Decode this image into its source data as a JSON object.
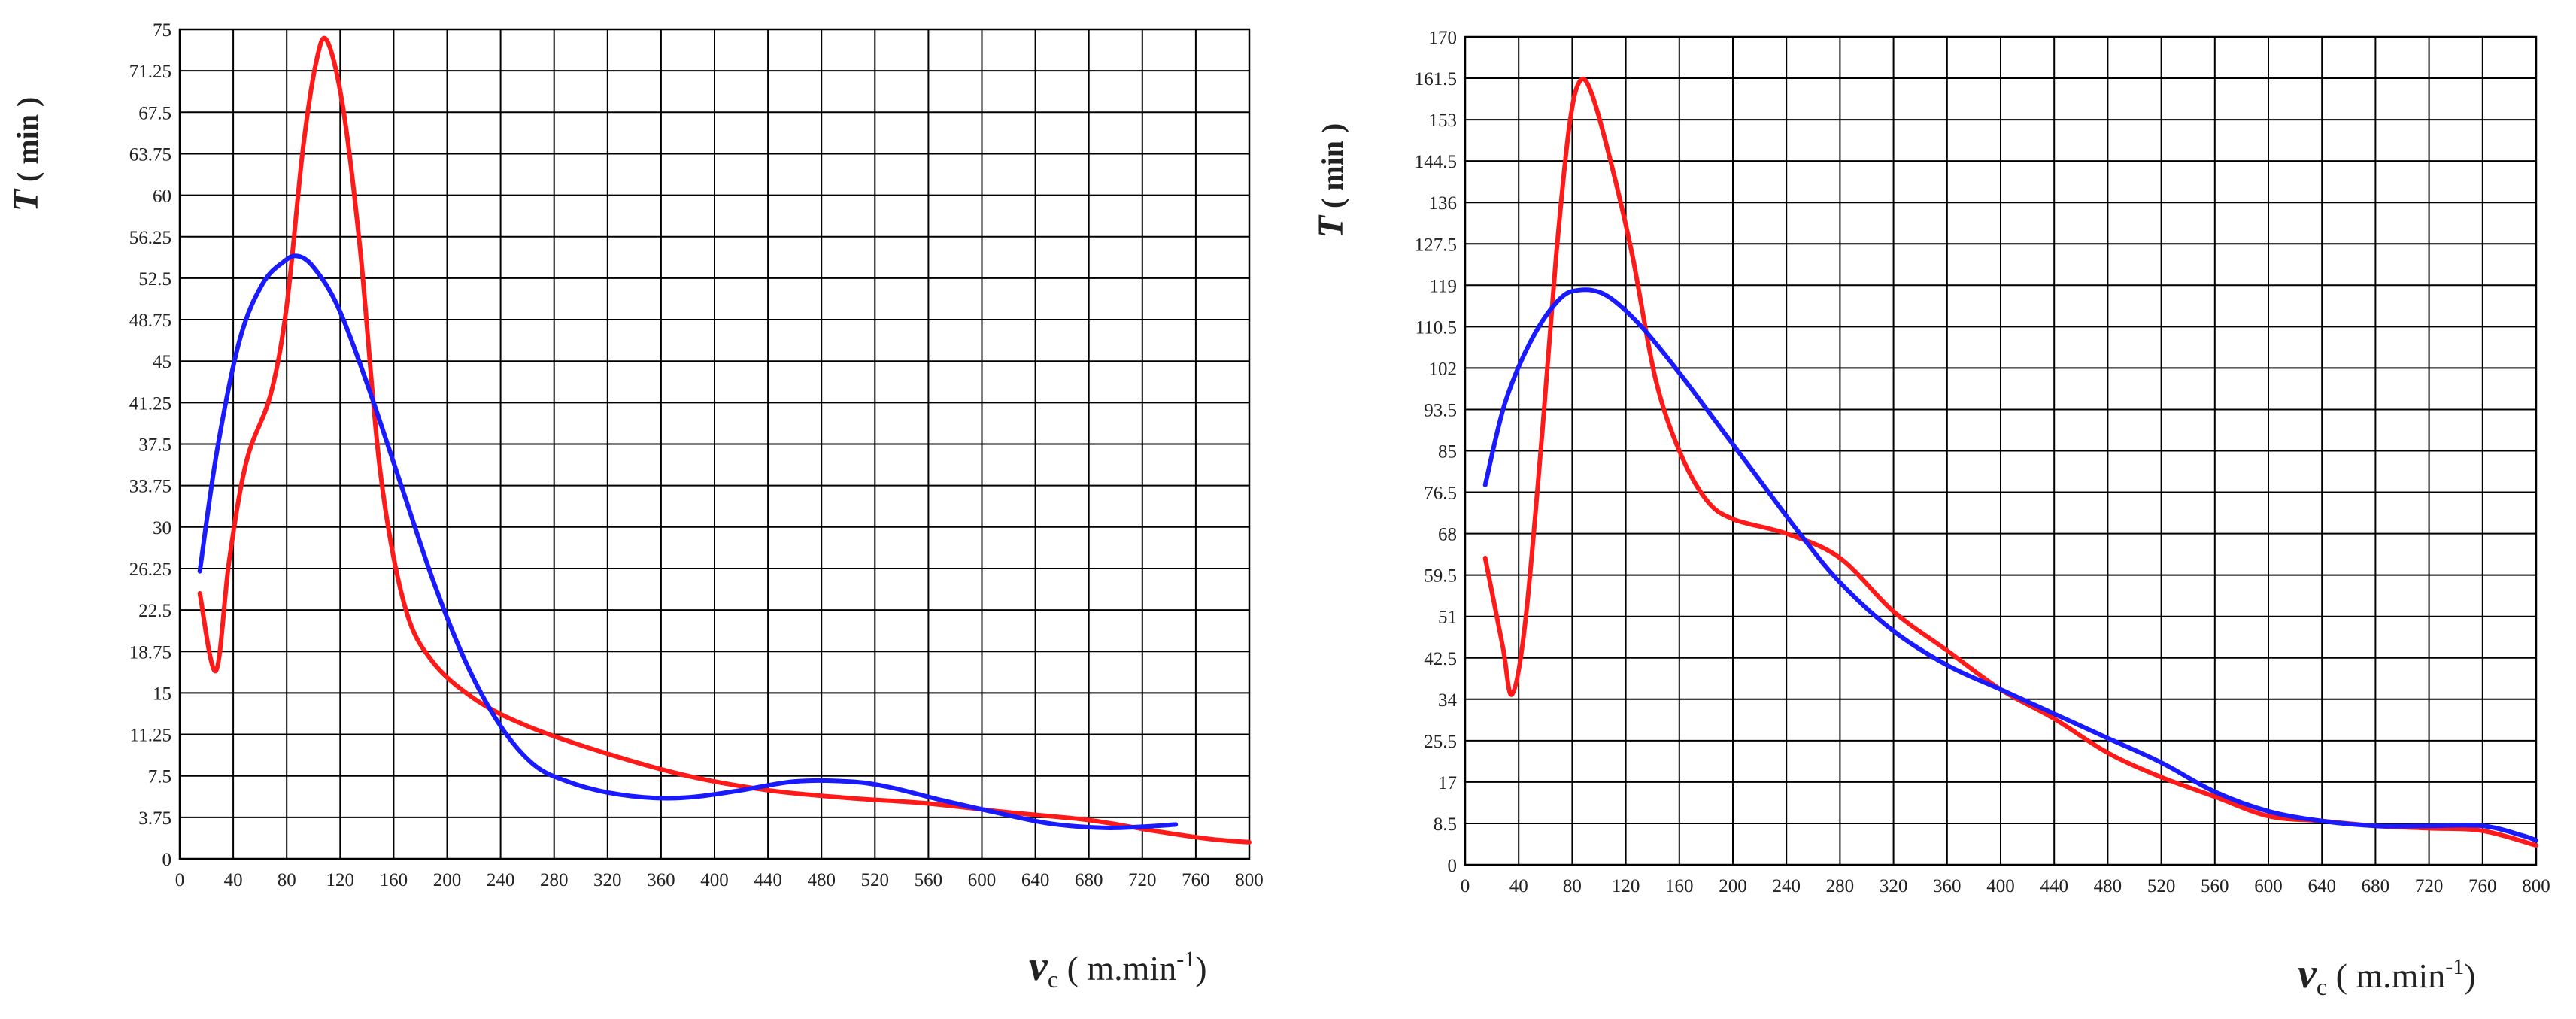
{
  "chart_data": [
    {
      "type": "line",
      "title": "",
      "xlabel": {
        "symbol": "v",
        "subscript": "c",
        "unit_pre": " ( m.min",
        "unit_sup": "-1",
        "unit_post": ")"
      },
      "ylabel": {
        "symbol": "T",
        "unit": " ( min )"
      },
      "xlim": [
        0,
        800
      ],
      "ylim": [
        0,
        75
      ],
      "grid": true,
      "x_ticks": [
        0,
        40,
        80,
        120,
        160,
        200,
        240,
        280,
        320,
        360,
        400,
        440,
        480,
        520,
        560,
        600,
        640,
        680,
        720,
        760,
        800
      ],
      "y_ticks": [
        "0",
        "3.75",
        "7.5",
        "11.25",
        "15",
        "18.75",
        "22.5",
        "26.25",
        "30",
        "33.75",
        "37.5",
        "41.25",
        "45",
        "48.75",
        "52.5",
        "56.25",
        "60",
        "63.75",
        "67.5",
        "71.25",
        "75"
      ],
      "series": [
        {
          "name": "red",
          "color": "#ff1a1a",
          "points": [
            [
              15,
              24
            ],
            [
              27,
              17
            ],
            [
              37,
              27
            ],
            [
              50,
              36
            ],
            [
              68,
              42
            ],
            [
              80,
              50
            ],
            [
              92,
              64
            ],
            [
              102,
              72
            ],
            [
              110,
              74
            ],
            [
              122,
              68
            ],
            [
              135,
              55
            ],
            [
              150,
              35
            ],
            [
              168,
              23
            ],
            [
              188,
              18
            ],
            [
              220,
              14.5
            ],
            [
              260,
              12
            ],
            [
              320,
              9.5
            ],
            [
              380,
              7.5
            ],
            [
              440,
              6.2
            ],
            [
              500,
              5.5
            ],
            [
              560,
              5
            ],
            [
              620,
              4.2
            ],
            [
              680,
              3.5
            ],
            [
              730,
              2.5
            ],
            [
              770,
              1.8
            ],
            [
              800,
              1.5
            ]
          ]
        },
        {
          "name": "blue",
          "color": "#1a1aff",
          "points": [
            [
              15,
              26
            ],
            [
              28,
              37
            ],
            [
              45,
              47
            ],
            [
              62,
              52
            ],
            [
              78,
              54
            ],
            [
              88,
              54.5
            ],
            [
              100,
              53.5
            ],
            [
              118,
              50
            ],
            [
              140,
              43
            ],
            [
              165,
              34
            ],
            [
              190,
              25
            ],
            [
              215,
              17.5
            ],
            [
              240,
              12
            ],
            [
              265,
              8.5
            ],
            [
              290,
              7
            ],
            [
              320,
              6
            ],
            [
              355,
              5.5
            ],
            [
              385,
              5.6
            ],
            [
              420,
              6.2
            ],
            [
              460,
              7
            ],
            [
              500,
              7
            ],
            [
              530,
              6.5
            ],
            [
              570,
              5.3
            ],
            [
              610,
              4.2
            ],
            [
              650,
              3.2
            ],
            [
              690,
              2.8
            ],
            [
              720,
              2.9
            ],
            [
              745,
              3.1
            ]
          ]
        }
      ]
    },
    {
      "type": "line",
      "title": "",
      "xlabel": {
        "symbol": "v",
        "subscript": "c",
        "unit_pre": " ( m.min",
        "unit_sup": "-1",
        "unit_post": ")"
      },
      "ylabel": {
        "symbol": "T",
        "unit": " ( min )"
      },
      "xlim": [
        0,
        800
      ],
      "ylim": [
        0,
        170
      ],
      "grid": true,
      "x_ticks": [
        0,
        40,
        80,
        120,
        160,
        200,
        240,
        280,
        320,
        360,
        400,
        440,
        480,
        520,
        560,
        600,
        640,
        680,
        720,
        760,
        800
      ],
      "y_ticks": [
        "0",
        "8.5",
        "17",
        "25.5",
        "34",
        "42.5",
        "51",
        "59.5",
        "68",
        "76.5",
        "85",
        "93.5",
        "102",
        "110.5",
        "119",
        "127.5",
        "136",
        "144.5",
        "153",
        "161.5",
        "170"
      ],
      "series": [
        {
          "name": "red",
          "color": "#ff1a1a",
          "points": [
            [
              15,
              63
            ],
            [
              28,
              45
            ],
            [
              35,
              35
            ],
            [
              45,
              50
            ],
            [
              58,
              90
            ],
            [
              68,
              125
            ],
            [
              78,
              152
            ],
            [
              86,
              161
            ],
            [
              95,
              158
            ],
            [
              110,
              143
            ],
            [
              125,
              125
            ],
            [
              142,
              100
            ],
            [
              160,
              85
            ],
            [
              180,
              75
            ],
            [
              200,
              71
            ],
            [
              240,
              68
            ],
            [
              280,
              63
            ],
            [
              320,
              52
            ],
            [
              360,
              44
            ],
            [
              400,
              36
            ],
            [
              440,
              30
            ],
            [
              480,
              23
            ],
            [
              520,
              18
            ],
            [
              560,
              14
            ],
            [
              600,
              10
            ],
            [
              640,
              9
            ],
            [
              680,
              8
            ],
            [
              720,
              7.5
            ],
            [
              760,
              7
            ],
            [
              800,
              4
            ]
          ]
        },
        {
          "name": "blue",
          "color": "#1a1aff",
          "points": [
            [
              15,
              78
            ],
            [
              30,
              95
            ],
            [
              50,
              108
            ],
            [
              70,
              116
            ],
            [
              85,
              118
            ],
            [
              105,
              117
            ],
            [
              130,
              111
            ],
            [
              160,
              101
            ],
            [
              190,
              90
            ],
            [
              220,
              79
            ],
            [
              250,
              68
            ],
            [
              280,
              58
            ],
            [
              320,
              48
            ],
            [
              360,
              41
            ],
            [
              400,
              36
            ],
            [
              440,
              31
            ],
            [
              480,
              26
            ],
            [
              520,
              21
            ],
            [
              560,
              15
            ],
            [
              600,
              11
            ],
            [
              640,
              9
            ],
            [
              680,
              8
            ],
            [
              720,
              8
            ],
            [
              760,
              8
            ],
            [
              790,
              6
            ],
            [
              800,
              5
            ]
          ]
        }
      ]
    }
  ]
}
